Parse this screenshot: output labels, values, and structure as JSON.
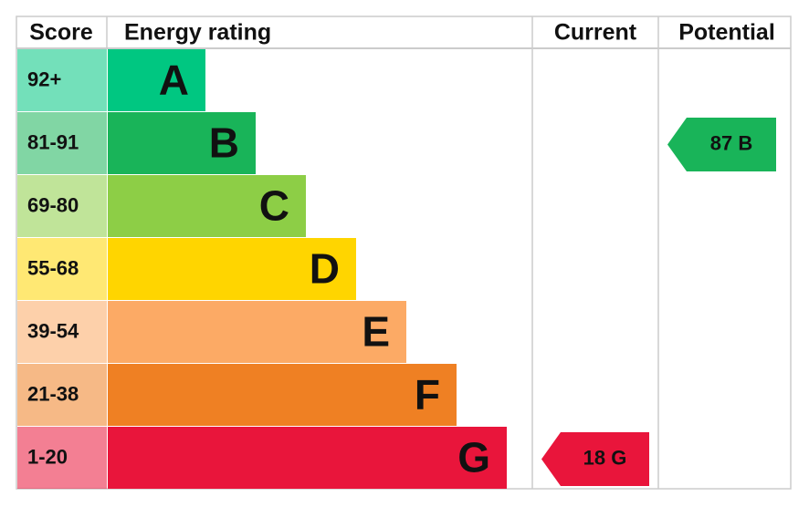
{
  "header": {
    "score": "Score",
    "energy_rating": "Energy rating",
    "current": "Current",
    "potential": "Potential"
  },
  "bands": [
    {
      "range": "92+",
      "letter": "A",
      "color": "#00c781"
    },
    {
      "range": "81-91",
      "letter": "B",
      "color": "#19b459"
    },
    {
      "range": "69-80",
      "letter": "C",
      "color": "#8dce46"
    },
    {
      "range": "55-68",
      "letter": "D",
      "color": "#ffd500"
    },
    {
      "range": "39-54",
      "letter": "E",
      "color": "#fcaa65"
    },
    {
      "range": "21-38",
      "letter": "F",
      "color": "#ef8023"
    },
    {
      "range": "1-20",
      "letter": "G",
      "color": "#e9153b"
    }
  ],
  "current": {
    "value": 18,
    "label": "18 G"
  },
  "potential": {
    "value": 87,
    "label": "87 B"
  }
}
